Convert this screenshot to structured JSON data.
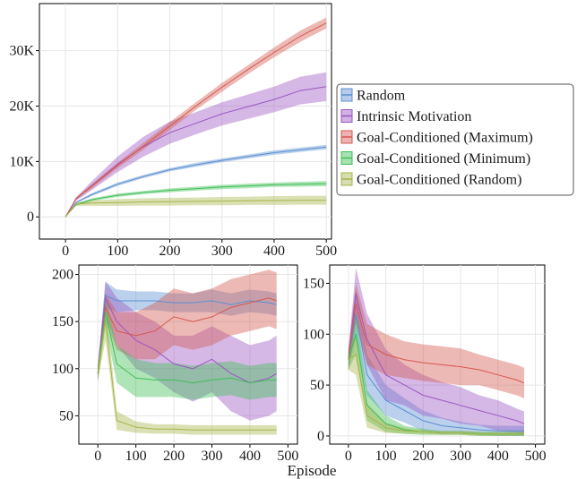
{
  "xlabel": "Episode",
  "legend": {
    "position": "right-of-top-chart",
    "items": [
      {
        "label": "Random",
        "color": "#5b8fd1"
      },
      {
        "label": "Intrinsic Motivation",
        "color": "#9b55c2"
      },
      {
        "label": "Goal-Conditioned (Maximum)",
        "color": "#d5584f"
      },
      {
        "label": "Goal-Conditioned (Minimum)",
        "color": "#3fbf55"
      },
      {
        "label": "Goal-Conditioned (Random)",
        "color": "#a7b44b"
      }
    ]
  },
  "chart_data": [
    {
      "type": "line",
      "grid": true,
      "xlim": [
        -50,
        510
      ],
      "ylim": [
        -4000,
        38500
      ],
      "xticks": [
        0,
        100,
        200,
        300,
        400,
        500
      ],
      "xtick_labels": [
        "0",
        "100",
        "200",
        "300",
        "400",
        "500"
      ],
      "yticks": [
        0,
        10000,
        20000,
        30000
      ],
      "ytick_labels": [
        "0",
        "10K",
        "20K",
        "30K"
      ],
      "series": [
        {
          "name": "Random",
          "color": "#5b8fd1",
          "x": [
            0,
            20,
            50,
            100,
            150,
            200,
            250,
            300,
            350,
            400,
            450,
            500
          ],
          "y": [
            0,
            2600,
            4000,
            5900,
            7300,
            8500,
            9400,
            10200,
            10900,
            11600,
            12100,
            12600
          ],
          "band": [
            0,
            150,
            250,
            300,
            300,
            300,
            350,
            350,
            350,
            400,
            400,
            400
          ]
        },
        {
          "name": "Intrinsic Motivation",
          "color": "#9b55c2",
          "x": [
            0,
            20,
            50,
            100,
            150,
            200,
            250,
            300,
            350,
            400,
            450,
            500
          ],
          "y": [
            0,
            3200,
            5600,
            9500,
            12700,
            15200,
            16900,
            18600,
            19900,
            21200,
            22800,
            23500
          ],
          "band": [
            0,
            300,
            800,
            1400,
            1800,
            2000,
            2000,
            2100,
            2200,
            2300,
            2500,
            2600
          ]
        },
        {
          "name": "Goal-Conditioned (Maximum)",
          "color": "#d5584f",
          "x": [
            0,
            20,
            50,
            100,
            150,
            200,
            250,
            300,
            350,
            400,
            450,
            500
          ],
          "y": [
            0,
            3300,
            5500,
            9300,
            12800,
            16400,
            20000,
            23400,
            26600,
            29700,
            32600,
            35000
          ],
          "band": [
            0,
            200,
            400,
            500,
            600,
            700,
            700,
            800,
            800,
            900,
            1000,
            1000
          ]
        },
        {
          "name": "Goal-Conditioned (Minimum)",
          "color": "#3fbf55",
          "x": [
            0,
            20,
            50,
            100,
            150,
            200,
            250,
            300,
            350,
            400,
            450,
            500
          ],
          "y": [
            0,
            2200,
            3100,
            3900,
            4400,
            4800,
            5100,
            5400,
            5600,
            5800,
            5900,
            6000
          ],
          "band": [
            0,
            200,
            250,
            300,
            300,
            350,
            350,
            400,
            400,
            400,
            450,
            450
          ]
        },
        {
          "name": "Goal-Conditioned (Random)",
          "color": "#a7b44b",
          "x": [
            0,
            20,
            50,
            100,
            150,
            200,
            250,
            300,
            350,
            400,
            450,
            500
          ],
          "y": [
            0,
            2300,
            2500,
            2600,
            2700,
            2750,
            2800,
            2850,
            2900,
            2950,
            3000,
            3000
          ],
          "band": [
            0,
            300,
            500,
            600,
            650,
            700,
            700,
            750,
            750,
            800,
            800,
            800
          ]
        }
      ]
    },
    {
      "type": "line",
      "grid": true,
      "xlim": [
        -50,
        525
      ],
      "ylim": [
        20,
        210
      ],
      "xticks": [
        0,
        100,
        200,
        300,
        400,
        500
      ],
      "xtick_labels": [
        "0",
        "100",
        "200",
        "300",
        "400",
        "500"
      ],
      "yticks": [
        50,
        100,
        150,
        200
      ],
      "ytick_labels": [
        "50",
        "100",
        "150",
        "200"
      ],
      "series": [
        {
          "name": "Random",
          "color": "#5b8fd1",
          "x": [
            0,
            20,
            50,
            100,
            150,
            200,
            250,
            300,
            350,
            400,
            450,
            470
          ],
          "y": [
            95,
            178,
            172,
            172,
            172,
            170,
            170,
            172,
            168,
            172,
            170,
            168
          ],
          "band": [
            8,
            14,
            12,
            10,
            10,
            10,
            10,
            12,
            12,
            12,
            12,
            12
          ]
        },
        {
          "name": "Intrinsic Motivation",
          "color": "#9b55c2",
          "x": [
            0,
            20,
            50,
            100,
            150,
            200,
            250,
            300,
            350,
            400,
            450,
            470
          ],
          "y": [
            95,
            175,
            150,
            130,
            120,
            105,
            100,
            110,
            95,
            85,
            90,
            95
          ],
          "band": [
            8,
            18,
            25,
            30,
            30,
            30,
            35,
            35,
            40,
            40,
            40,
            40
          ]
        },
        {
          "name": "Goal-Conditioned (Maximum)",
          "color": "#d5584f",
          "x": [
            0,
            20,
            50,
            100,
            150,
            200,
            250,
            300,
            350,
            400,
            450,
            470
          ],
          "y": [
            95,
            165,
            140,
            135,
            140,
            155,
            150,
            155,
            165,
            170,
            175,
            172
          ],
          "band": [
            8,
            15,
            20,
            25,
            30,
            30,
            30,
            30,
            30,
            30,
            30,
            30
          ]
        },
        {
          "name": "Goal-Conditioned (Minimum)",
          "color": "#3fbf55",
          "x": [
            0,
            20,
            50,
            100,
            150,
            200,
            250,
            300,
            350,
            400,
            450,
            470
          ],
          "y": [
            95,
            160,
            105,
            90,
            88,
            88,
            85,
            88,
            90,
            85,
            88,
            88
          ],
          "band": [
            8,
            15,
            20,
            20,
            18,
            18,
            18,
            18,
            18,
            18,
            18,
            18
          ]
        },
        {
          "name": "Goal-Conditioned (Random)",
          "color": "#a7b44b",
          "x": [
            0,
            20,
            50,
            100,
            150,
            200,
            250,
            300,
            350,
            400,
            450,
            470
          ],
          "y": [
            95,
            150,
            45,
            38,
            36,
            36,
            35,
            35,
            35,
            35,
            35,
            35
          ],
          "band": [
            8,
            20,
            10,
            6,
            5,
            5,
            5,
            5,
            5,
            5,
            5,
            5
          ]
        }
      ]
    },
    {
      "type": "line",
      "grid": true,
      "xlim": [
        -50,
        525
      ],
      "ylim": [
        -8,
        168
      ],
      "xticks": [
        0,
        100,
        200,
        300,
        400,
        500
      ],
      "xtick_labels": [
        "0",
        "100",
        "200",
        "300",
        "400",
        "500"
      ],
      "yticks": [
        0,
        50,
        100,
        150
      ],
      "ytick_labels": [
        "0",
        "50",
        "100",
        "150"
      ],
      "series": [
        {
          "name": "Random",
          "color": "#5b8fd1",
          "x": [
            0,
            20,
            50,
            100,
            150,
            200,
            250,
            300,
            350,
            400,
            450,
            470
          ],
          "y": [
            75,
            120,
            60,
            35,
            25,
            15,
            10,
            8,
            6,
            5,
            5,
            5
          ],
          "band": [
            10,
            25,
            20,
            15,
            12,
            10,
            8,
            6,
            5,
            5,
            5,
            5
          ]
        },
        {
          "name": "Intrinsic Motivation",
          "color": "#9b55c2",
          "x": [
            0,
            20,
            50,
            100,
            150,
            200,
            250,
            300,
            350,
            400,
            450,
            470
          ],
          "y": [
            75,
            140,
            95,
            60,
            50,
            40,
            35,
            30,
            25,
            20,
            15,
            12
          ],
          "band": [
            10,
            25,
            25,
            25,
            20,
            20,
            18,
            18,
            15,
            15,
            12,
            12
          ]
        },
        {
          "name": "Goal-Conditioned (Maximum)",
          "color": "#d5584f",
          "x": [
            0,
            20,
            50,
            100,
            150,
            200,
            250,
            300,
            350,
            400,
            450,
            470
          ],
          "y": [
            75,
            130,
            90,
            80,
            75,
            72,
            70,
            68,
            65,
            60,
            55,
            52
          ],
          "band": [
            10,
            20,
            20,
            20,
            18,
            18,
            18,
            18,
            15,
            15,
            15,
            15
          ]
        },
        {
          "name": "Goal-Conditioned (Minimum)",
          "color": "#3fbf55",
          "x": [
            0,
            20,
            50,
            100,
            150,
            200,
            250,
            300,
            350,
            400,
            450,
            470
          ],
          "y": [
            75,
            100,
            30,
            12,
            6,
            4,
            3,
            3,
            2,
            2,
            2,
            2
          ],
          "band": [
            10,
            20,
            15,
            8,
            4,
            3,
            2,
            2,
            2,
            2,
            2,
            2
          ]
        },
        {
          "name": "Goal-Conditioned (Random)",
          "color": "#a7b44b",
          "x": [
            0,
            20,
            50,
            100,
            150,
            200,
            250,
            300,
            350,
            400,
            450,
            470
          ],
          "y": [
            75,
            80,
            20,
            8,
            5,
            4,
            3,
            3,
            2,
            2,
            2,
            2
          ],
          "band": [
            10,
            20,
            12,
            5,
            3,
            2,
            2,
            2,
            2,
            2,
            2,
            2
          ]
        }
      ]
    }
  ]
}
